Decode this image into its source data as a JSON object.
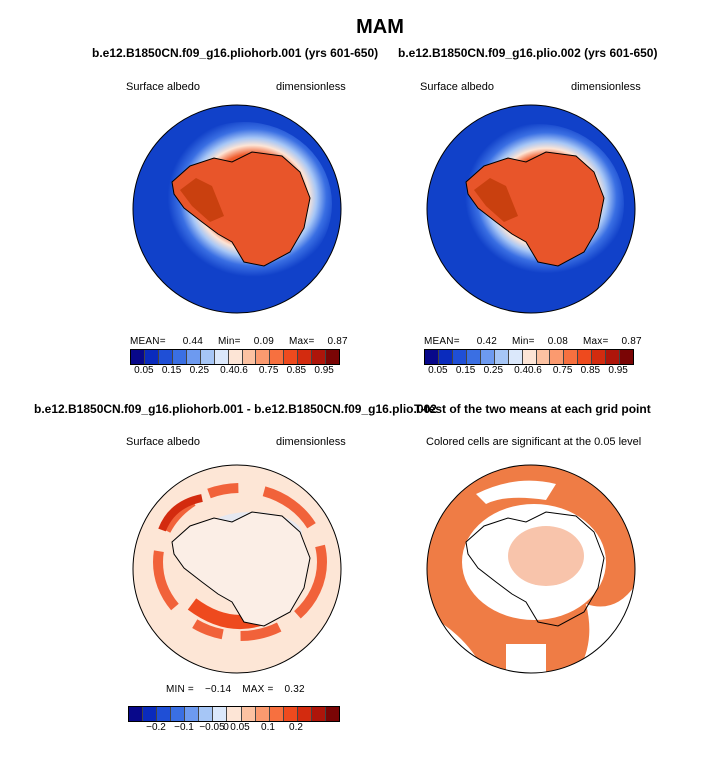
{
  "title": "MAM",
  "panels": [
    {
      "title": "b.e12.B1850CN.f09_g16.pliohorb.001 (yrs 601-650)",
      "left_label": "Surface albedo",
      "right_label": "dimensionless",
      "stats": {
        "mean_label": "MEAN=",
        "mean": "0.44",
        "min_label": "Min=",
        "min": "0.09",
        "max_label": "Max=",
        "max": "0.87"
      }
    },
    {
      "title": "b.e12.B1850CN.f09_g16.plio.002 (yrs 601-650)",
      "left_label": "Surface albedo",
      "right_label": "dimensionless",
      "stats": {
        "mean_label": "MEAN=",
        "mean": "0.42",
        "min_label": "Min=",
        "min": "0.08",
        "max_label": "Max=",
        "max": "0.87"
      }
    },
    {
      "title": "b.e12.B1850CN.f09_g16.pliohorb.001 - b.e12.B1850CN.f09_g16.plio.002",
      "left_label": "Surface albedo",
      "right_label": "dimensionless",
      "stats": {
        "min_label": "MIN =",
        "min": "−0.14",
        "max_label": "MAX =",
        "max": "0.32"
      }
    },
    {
      "title": "T-test of the two means at each grid point",
      "subtitle": "Colored cells are significant at the 0.05 level"
    }
  ],
  "colorbars": {
    "albedo_colors": [
      "#08088a",
      "#0a2bbd",
      "#1f4fd6",
      "#3a6fe3",
      "#6d9af0",
      "#a6c6f6",
      "#dbe8fb",
      "#fde5d6",
      "#fcc2a2",
      "#fb9a6f",
      "#f7703f",
      "#ee4a1e",
      "#d32b0f",
      "#ae150a",
      "#7a0505"
    ],
    "albedo_ticks": [
      "0.05",
      "0.15",
      "0.25",
      "0.4",
      "0.6",
      "0.75",
      "0.85",
      "0.95"
    ],
    "diff_colors": [
      "#08088a",
      "#0a2bbd",
      "#1f4fd6",
      "#3a6fe3",
      "#6d9af0",
      "#a6c6f6",
      "#dbe8fb",
      "#fde5d6",
      "#fcc2a2",
      "#fb9a6f",
      "#f7703f",
      "#ee4a1e",
      "#d32b0f",
      "#ae150a",
      "#7a0505"
    ],
    "diff_ticks": [
      "−0.2",
      "−0.1",
      "−0.05",
      "0",
      "0.05",
      "0.1",
      "0.2"
    ]
  },
  "colors": {
    "ocean_deep": "#1141c9",
    "sea_ice_edge": "#cfe0f8",
    "ice_orange": "#ef5a2a",
    "ice_dark": "#d2420f",
    "diff_bg": "#fde6d6",
    "signif": "#ef7c45"
  },
  "chart_data": [
    {
      "type": "heatmap",
      "title": "b.e12.B1850CN.f09_g16.pliohorb.001 (yrs 601-650)",
      "variable": "Surface albedo",
      "units": "dimensionless",
      "mean": 0.44,
      "min": 0.09,
      "max": 0.87,
      "levels": [
        0.05,
        0.1,
        0.15,
        0.2,
        0.25,
        0.3,
        0.4,
        0.5,
        0.6,
        0.7,
        0.75,
        0.8,
        0.85,
        0.9,
        0.95
      ]
    },
    {
      "type": "heatmap",
      "title": "b.e12.B1850CN.f09_g16.plio.002 (yrs 601-650)",
      "variable": "Surface albedo",
      "units": "dimensionless",
      "mean": 0.42,
      "min": 0.08,
      "max": 0.87,
      "levels": [
        0.05,
        0.1,
        0.15,
        0.2,
        0.25,
        0.3,
        0.4,
        0.5,
        0.6,
        0.7,
        0.75,
        0.8,
        0.85,
        0.9,
        0.95
      ]
    },
    {
      "type": "heatmap",
      "title": "b.e12.B1850CN.f09_g16.pliohorb.001 - b.e12.B1850CN.f09_g16.plio.002",
      "variable": "Surface albedo",
      "units": "dimensionless",
      "min": -0.14,
      "max": 0.32
    },
    {
      "type": "heatmap",
      "title": "T-test of the two means at each grid point",
      "significance_level": 0.05
    }
  ]
}
